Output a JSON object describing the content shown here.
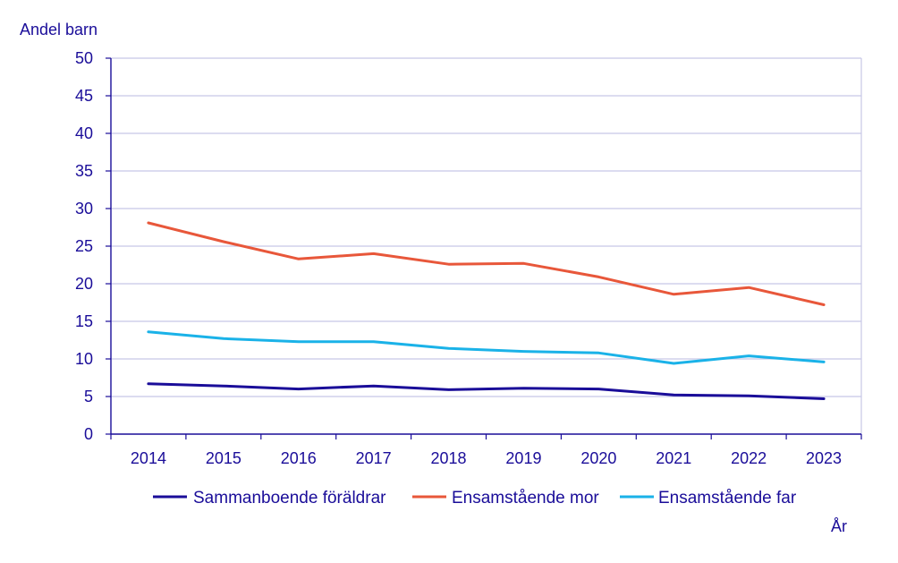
{
  "colors": {
    "text": "#1a0d99",
    "axis": "#1a0d99",
    "grid": "#c8c8e6",
    "series": [
      "#1a0d99",
      "#e8573a",
      "#1ab2e8"
    ]
  },
  "chart_data": {
    "type": "line",
    "title": "",
    "ylabel": "Andel barn",
    "xlabel": "År",
    "ylim": [
      0,
      50
    ],
    "yticks": [
      0,
      5,
      10,
      15,
      20,
      25,
      30,
      35,
      40,
      45,
      50
    ],
    "ytick_labels": [
      "0",
      "5",
      "10",
      "15",
      "20",
      "25",
      "30",
      "35",
      "40",
      "45",
      "50"
    ],
    "grid": true,
    "legend_position": "bottom",
    "categories": [
      "2014",
      "2015",
      "2016",
      "2017",
      "2018",
      "2019",
      "2020",
      "2021",
      "2022",
      "2023"
    ],
    "series": [
      {
        "name": "Sammanboende föräldrar",
        "values": [
          6.7,
          6.4,
          6.0,
          6.4,
          5.9,
          6.1,
          6.0,
          5.2,
          5.1,
          4.7
        ]
      },
      {
        "name": "Ensamstående mor",
        "values": [
          28.1,
          25.6,
          23.3,
          24.0,
          22.6,
          22.7,
          20.9,
          18.6,
          19.5,
          17.2
        ]
      },
      {
        "name": "Ensamstående far",
        "values": [
          13.6,
          12.7,
          12.3,
          12.3,
          11.4,
          11.0,
          10.8,
          9.4,
          10.4,
          9.6
        ]
      }
    ]
  }
}
